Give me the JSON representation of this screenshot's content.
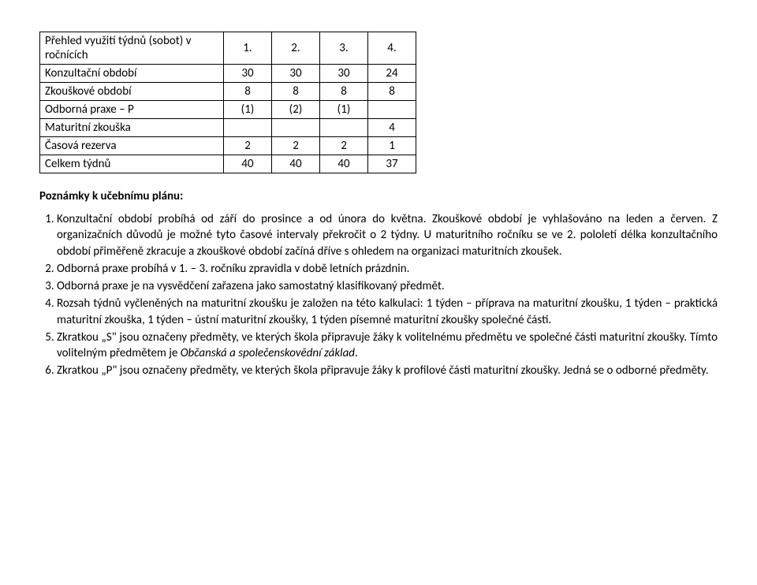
{
  "table": {
    "header": {
      "label": "Přehled využití týdnů (sobot) v ročnících",
      "cols": [
        "1.",
        "2.",
        "3.",
        "4."
      ]
    },
    "rows": [
      {
        "label": "Konzultační období",
        "cells": [
          "30",
          "30",
          "30",
          "24"
        ]
      },
      {
        "label": "Zkouškové období",
        "cells": [
          "8",
          "8",
          "8",
          "8"
        ]
      },
      {
        "label": "Odborná praxe – P",
        "cells": [
          "(1)",
          "(2)",
          "(1)",
          ""
        ]
      },
      {
        "label": "Maturitní zkouška",
        "cells": [
          "",
          "",
          "",
          "4"
        ]
      },
      {
        "label": "Časová rezerva",
        "cells": [
          "2",
          "2",
          "2",
          "1"
        ]
      },
      {
        "label": "Celkem týdnů",
        "cells": [
          "40",
          "40",
          "40",
          "37"
        ]
      }
    ],
    "col_width_label": 220,
    "col_width_num": 48,
    "border_color": "#000000"
  },
  "notes_heading": "Poznámky k učebnímu plánu:",
  "notes": [
    {
      "text": "Konzultační období probíhá od září do prosince a od února do května. Zkouškové období je vyhlašováno na leden a červen. Z organizačních důvodů je možné tyto časové intervaly překročit o 2 týdny. U maturitního ročníku se ve 2. pololetí délka konzultačního období přiměřeně zkracuje a zkouškové období začíná dříve s ohledem na organizaci maturitních zkoušek."
    },
    {
      "text": "Odborná praxe probíhá v 1. – 3. ročníku zpravidla v době letních prázdnin."
    },
    {
      "text": "Odborná praxe je na vysvědčení zařazena jako samostatný klasifikovaný předmět."
    },
    {
      "text": "Rozsah týdnů vyčleněných na maturitní zkoušku je založen na této kalkulaci: 1 týden – příprava na maturitní zkoušku, 1 týden – praktická maturitní zkouška, 1 týden – ústní maturitní zkoušky, 1 týden písemné maturitní zkoušky společné části."
    },
    {
      "text_before": "Zkratkou „S\" jsou označeny předměty, ve kterých škola připravuje žáky k volitelnému předmětu ve společné části maturitní zkoušky. Tímto volitelným předmětem je ",
      "italic": "Občanská a společenskovědní základ",
      "text_after": "."
    },
    {
      "text": "Zkratkou „P\" jsou označeny předměty, ve kterých škola připravuje žáky k profilové části maturitní zkoušky. Jedná se o odborné předměty."
    }
  ],
  "style": {
    "background_color": "#ffffff",
    "text_color": "#000000",
    "font_family": "Calibri",
    "body_fontsize": 15
  }
}
